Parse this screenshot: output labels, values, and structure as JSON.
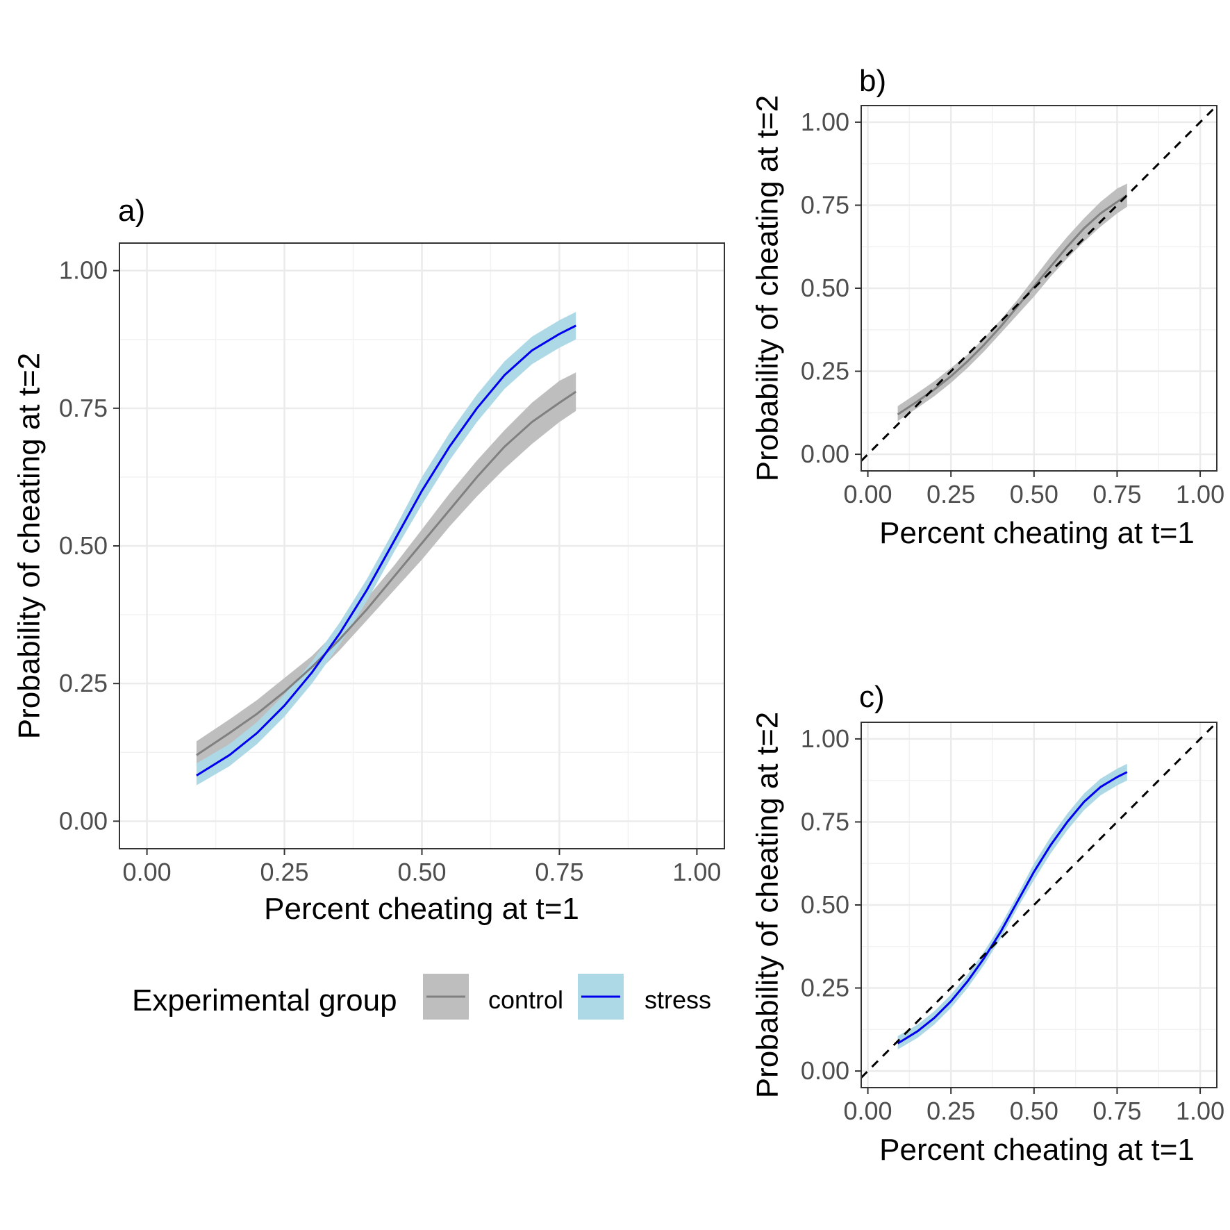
{
  "chart_data": [
    {
      "panel": "a)",
      "type": "line",
      "xlabel": "Percent cheating at t=1",
      "ylabel": "Probability of cheating at t=2",
      "xlim": [
        -0.05,
        1.05
      ],
      "ylim": [
        -0.05,
        1.05
      ],
      "xticks": [
        "0.00",
        "0.25",
        "0.50",
        "0.75",
        "1.00"
      ],
      "yticks": [
        "0.00",
        "0.25",
        "0.50",
        "0.75",
        "1.00"
      ],
      "grid": true,
      "identity_line": false,
      "series": [
        {
          "name": "control",
          "line_color": "#808080",
          "band_color": "#bebebe",
          "x": [
            0.09,
            0.15,
            0.2,
            0.25,
            0.3,
            0.35,
            0.4,
            0.45,
            0.5,
            0.55,
            0.6,
            0.65,
            0.7,
            0.75,
            0.78
          ],
          "y": [
            0.12,
            0.16,
            0.195,
            0.235,
            0.28,
            0.33,
            0.385,
            0.445,
            0.505,
            0.565,
            0.625,
            0.68,
            0.725,
            0.76,
            0.78
          ],
          "lower": [
            0.1,
            0.14,
            0.175,
            0.215,
            0.26,
            0.31,
            0.365,
            0.42,
            0.475,
            0.535,
            0.59,
            0.64,
            0.685,
            0.725,
            0.745
          ],
          "upper": [
            0.145,
            0.185,
            0.22,
            0.26,
            0.3,
            0.35,
            0.405,
            0.465,
            0.53,
            0.595,
            0.655,
            0.71,
            0.76,
            0.8,
            0.815
          ]
        },
        {
          "name": "stress",
          "line_color": "#0000ee",
          "band_color": "#add8e6",
          "x": [
            0.09,
            0.15,
            0.2,
            0.25,
            0.3,
            0.35,
            0.4,
            0.45,
            0.5,
            0.55,
            0.6,
            0.65,
            0.7,
            0.75,
            0.78
          ],
          "y": [
            0.083,
            0.12,
            0.16,
            0.21,
            0.27,
            0.34,
            0.42,
            0.51,
            0.6,
            0.68,
            0.75,
            0.81,
            0.855,
            0.885,
            0.9
          ],
          "lower": [
            0.065,
            0.1,
            0.14,
            0.19,
            0.25,
            0.32,
            0.4,
            0.49,
            0.575,
            0.655,
            0.725,
            0.785,
            0.83,
            0.86,
            0.875
          ],
          "upper": [
            0.105,
            0.14,
            0.18,
            0.23,
            0.29,
            0.36,
            0.44,
            0.53,
            0.625,
            0.705,
            0.775,
            0.835,
            0.88,
            0.91,
            0.925
          ]
        }
      ]
    },
    {
      "panel": "b)",
      "type": "line",
      "xlabel": "Percent cheating at t=1",
      "ylabel": "Probability of cheating at t=2",
      "xlim": [
        -0.02,
        1.05
      ],
      "ylim": [
        -0.05,
        1.05
      ],
      "xticks": [
        "0.00",
        "0.25",
        "0.50",
        "0.75",
        "1.00"
      ],
      "yticks": [
        "0.00",
        "0.25",
        "0.50",
        "0.75",
        "1.00"
      ],
      "grid": true,
      "identity_line": true,
      "series": [
        {
          "name": "control",
          "line_color": "#808080",
          "band_color": "#bebebe",
          "x": [
            0.09,
            0.15,
            0.2,
            0.25,
            0.3,
            0.35,
            0.4,
            0.45,
            0.5,
            0.55,
            0.6,
            0.65,
            0.7,
            0.75,
            0.78
          ],
          "y": [
            0.12,
            0.16,
            0.195,
            0.235,
            0.28,
            0.33,
            0.385,
            0.445,
            0.505,
            0.565,
            0.625,
            0.68,
            0.725,
            0.76,
            0.78
          ],
          "lower": [
            0.1,
            0.14,
            0.175,
            0.215,
            0.26,
            0.31,
            0.365,
            0.42,
            0.475,
            0.535,
            0.59,
            0.64,
            0.685,
            0.725,
            0.745
          ],
          "upper": [
            0.145,
            0.185,
            0.22,
            0.26,
            0.3,
            0.35,
            0.405,
            0.465,
            0.53,
            0.595,
            0.655,
            0.71,
            0.76,
            0.8,
            0.815
          ]
        }
      ]
    },
    {
      "panel": "c)",
      "type": "line",
      "xlabel": "Percent cheating at t=1",
      "ylabel": "Probability of cheating at t=2",
      "xlim": [
        -0.02,
        1.05
      ],
      "ylim": [
        -0.05,
        1.05
      ],
      "xticks": [
        "0.00",
        "0.25",
        "0.50",
        "0.75",
        "1.00"
      ],
      "yticks": [
        "0.00",
        "0.25",
        "0.50",
        "0.75",
        "1.00"
      ],
      "grid": true,
      "identity_line": true,
      "series": [
        {
          "name": "stress",
          "line_color": "#0000ee",
          "band_color": "#add8e6",
          "x": [
            0.09,
            0.15,
            0.2,
            0.25,
            0.3,
            0.35,
            0.4,
            0.45,
            0.5,
            0.55,
            0.6,
            0.65,
            0.7,
            0.75,
            0.78
          ],
          "y": [
            0.083,
            0.12,
            0.16,
            0.21,
            0.27,
            0.34,
            0.42,
            0.51,
            0.6,
            0.68,
            0.75,
            0.81,
            0.855,
            0.885,
            0.9
          ],
          "lower": [
            0.065,
            0.1,
            0.14,
            0.19,
            0.25,
            0.32,
            0.4,
            0.49,
            0.575,
            0.655,
            0.725,
            0.785,
            0.83,
            0.86,
            0.875
          ],
          "upper": [
            0.105,
            0.14,
            0.18,
            0.23,
            0.29,
            0.36,
            0.44,
            0.53,
            0.625,
            0.705,
            0.775,
            0.835,
            0.88,
            0.91,
            0.925
          ]
        }
      ]
    }
  ],
  "legend": {
    "title": "Experimental group",
    "items": [
      {
        "label": "control",
        "line_color": "#808080",
        "band_color": "#bebebe"
      },
      {
        "label": "stress",
        "line_color": "#0000ee",
        "band_color": "#add8e6"
      }
    ]
  }
}
